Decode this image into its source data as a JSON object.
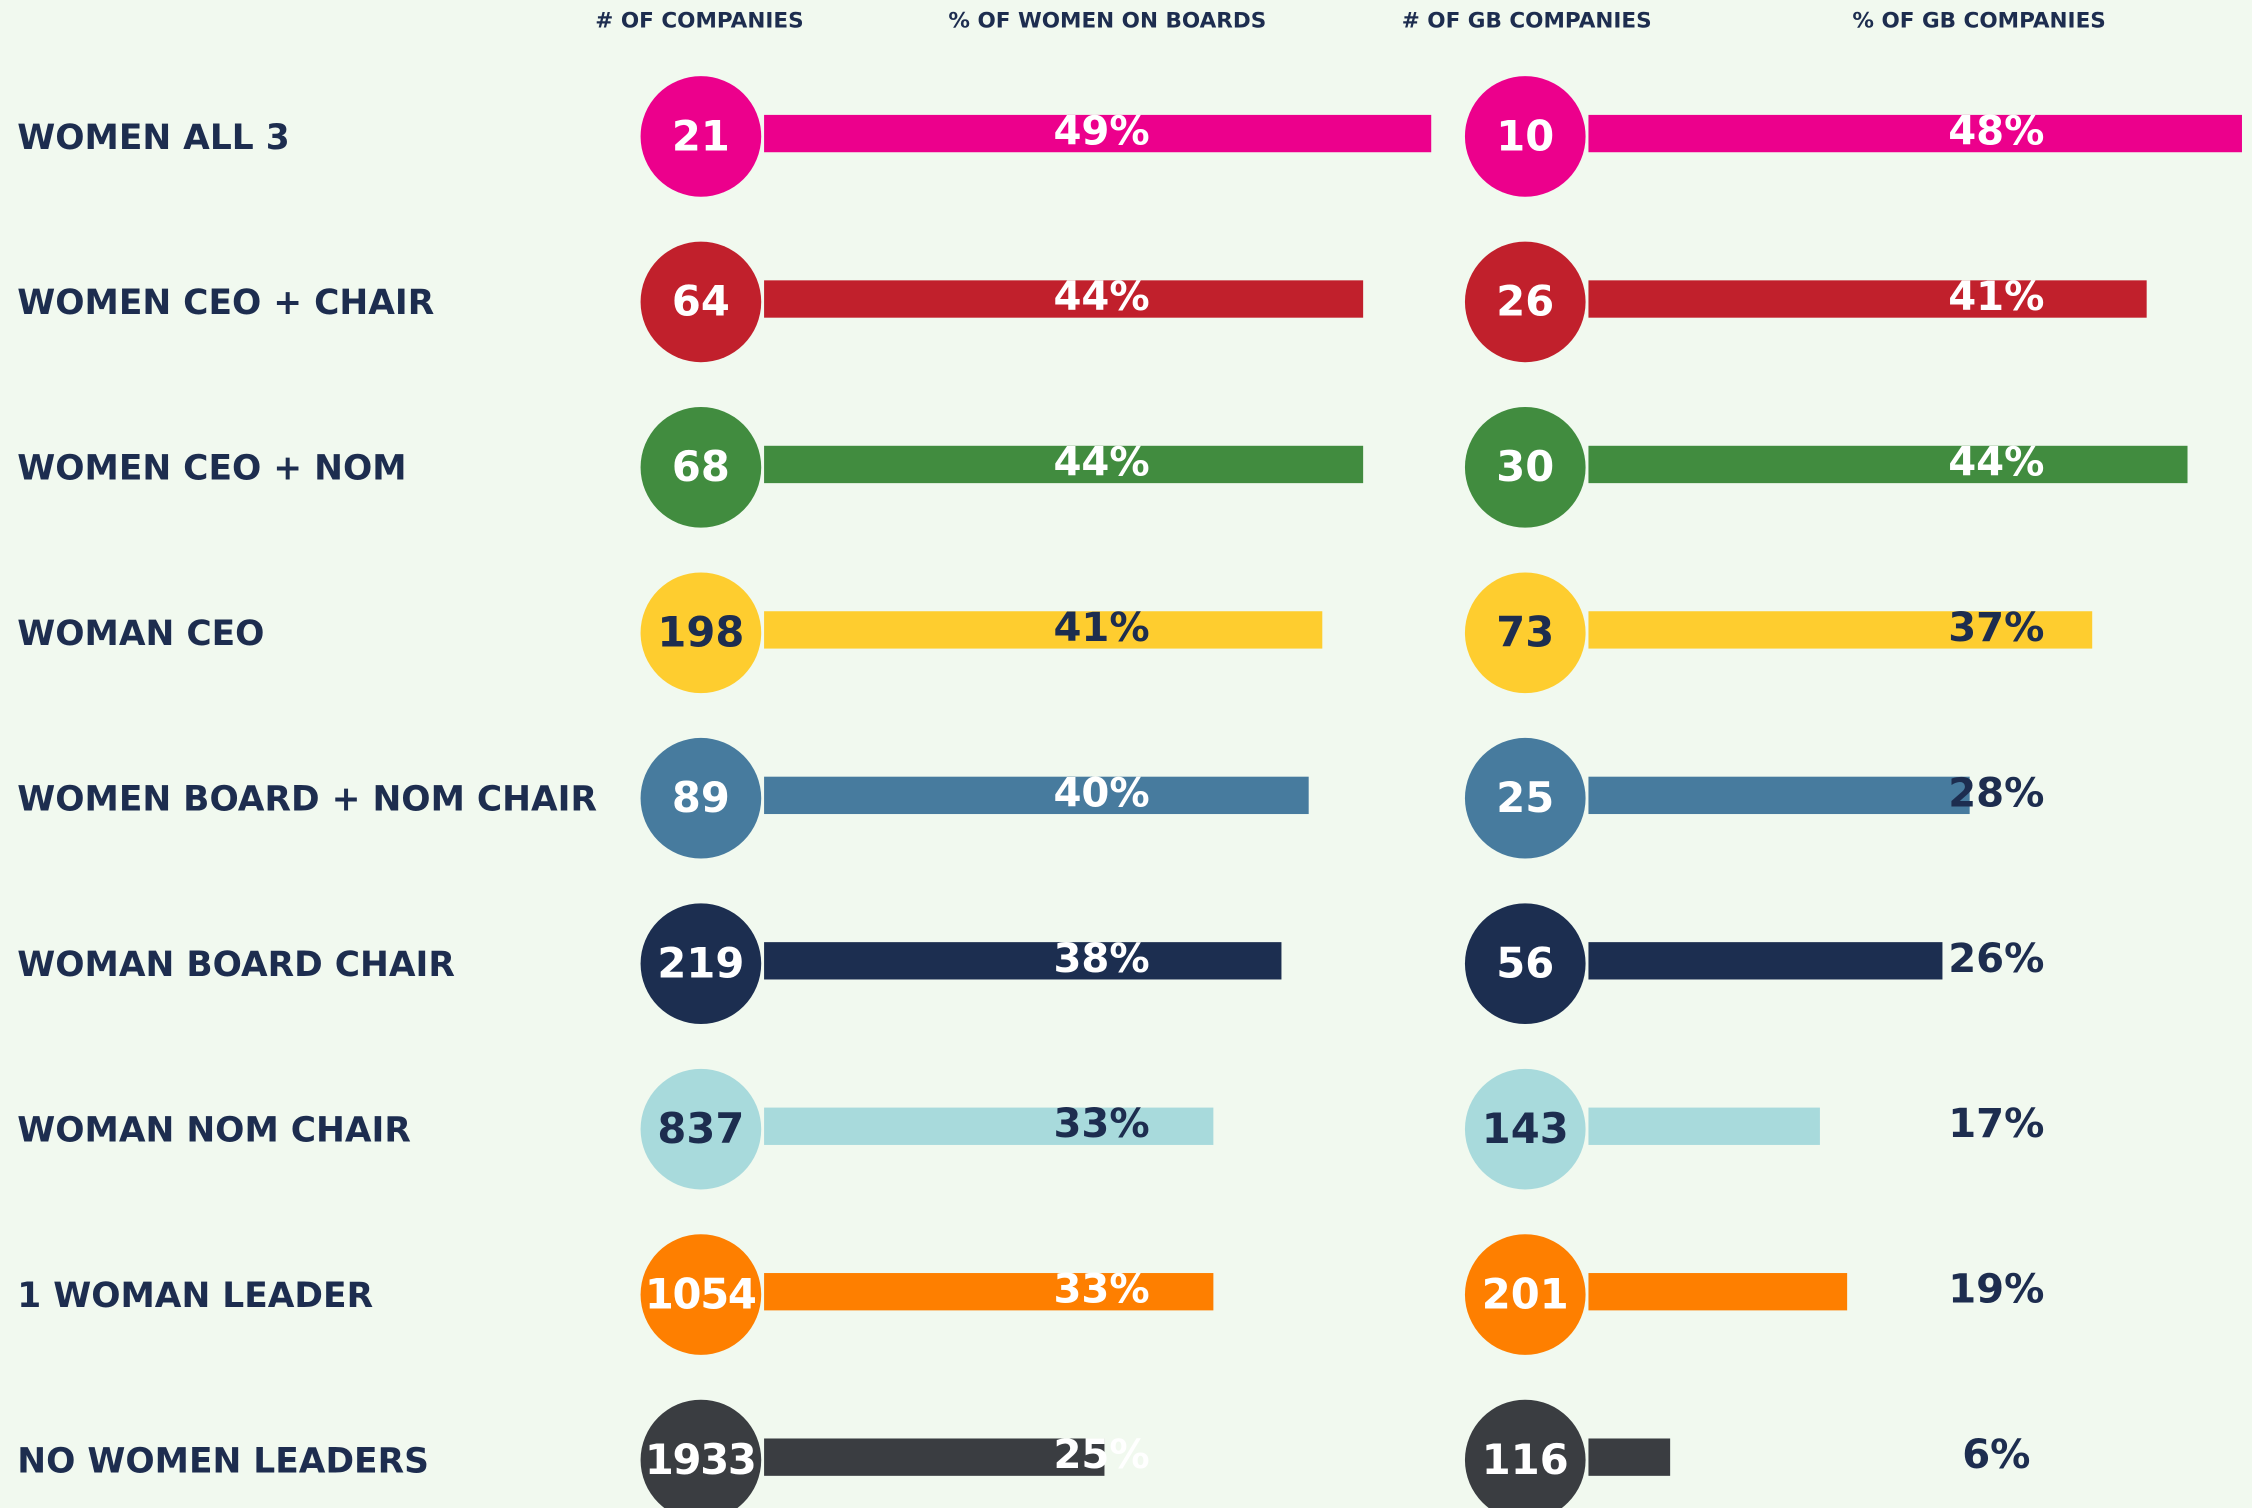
{
  "chart_data": {
    "type": "bar",
    "categories": [
      "WOMEN ALL 3",
      "WOMEN CEO + CHAIR",
      "WOMEN CEO + NOM",
      "WOMAN CEO",
      "WOMEN BOARD + NOM CHAIR",
      "WOMAN BOARD CHAIR",
      "WOMAN NOM CHAIR",
      "1 WOMAN LEADER",
      "NO WOMEN LEADERS"
    ],
    "colors": [
      "#ec008c",
      "#c1202c",
      "#418c3f",
      "#fecd2f",
      "#477b9e",
      "#1c2e50",
      "#a8dadc",
      "#fe7f00",
      "#3a3d41"
    ],
    "label_colors": [
      "#ffffff",
      "#ffffff",
      "#ffffff",
      "#1d2d4f",
      "#ffffff",
      "#ffffff",
      "#1d2d4f",
      "#ffffff",
      "#ffffff"
    ],
    "outside_label_color": "#1d2d4f",
    "series": [
      {
        "count_name": "# OF COMPANIES",
        "name": "% OF WOMEN ON BOARDS",
        "counts": [
          21,
          64,
          68,
          198,
          89,
          219,
          837,
          1054,
          1933
        ],
        "values": [
          49,
          44,
          44,
          41,
          40,
          38,
          33,
          33,
          25
        ],
        "value_labels": [
          "49%",
          "44%",
          "44%",
          "41%",
          "40%",
          "38%",
          "33%",
          "33%",
          "25%"
        ]
      },
      {
        "count_name": "# OF GB COMPANIES",
        "name": "% OF GB COMPANIES",
        "counts": [
          10,
          26,
          30,
          73,
          25,
          56,
          143,
          201,
          116
        ],
        "values": [
          48,
          41,
          44,
          37,
          28,
          26,
          17,
          19,
          6
        ],
        "value_labels": [
          "48%",
          "41%",
          "44%",
          "37%",
          "28%",
          "26%",
          "17%",
          "19%",
          "6%"
        ]
      }
    ]
  }
}
